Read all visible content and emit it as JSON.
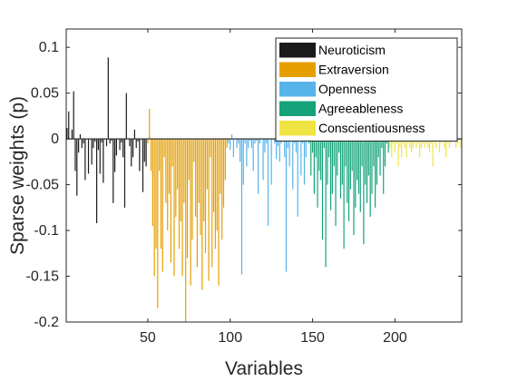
{
  "chart_data": {
    "type": "bar",
    "xlabel": "Variables",
    "ylabel": "Sparse weights (p)",
    "xlim": [
      0.5,
      240.5
    ],
    "ylim": [
      -0.2,
      0.12
    ],
    "x_ticks": [
      {
        "value": 50,
        "label": "50"
      },
      {
        "value": 100,
        "label": "100"
      },
      {
        "value": 150,
        "label": "150"
      },
      {
        "value": 200,
        "label": "200"
      }
    ],
    "y_ticks": [
      {
        "value": 0.1,
        "label": "0.1"
      },
      {
        "value": 0.05,
        "label": "0.05"
      },
      {
        "value": 0,
        "label": "0"
      },
      {
        "value": -0.05,
        "label": "-0.05"
      },
      {
        "value": -0.1,
        "label": "-0.1"
      },
      {
        "value": -0.15,
        "label": "-0.15"
      },
      {
        "value": -0.2,
        "label": "-0.2"
      }
    ],
    "grid": false,
    "legend_position": "top-right",
    "series": [
      {
        "name": "Neuroticism",
        "color": "#1a1a1a",
        "x_start": 1,
        "values": [
          0.012,
          0.03,
          0.0,
          0.01,
          0.052,
          -0.035,
          -0.062,
          -0.015,
          0.005,
          -0.01,
          -0.005,
          -0.045,
          0.0,
          -0.038,
          0.0,
          -0.028,
          -0.01,
          -0.003,
          -0.092,
          -0.012,
          -0.038,
          -0.004,
          -0.048,
          0.0,
          -0.008,
          0.089,
          -0.005,
          -0.002,
          -0.07,
          -0.036,
          -0.018,
          0.0,
          -0.012,
          -0.004,
          -0.02,
          -0.075,
          0.05,
          0.0,
          -0.008,
          -0.03,
          -0.02,
          0.01,
          -0.01,
          -0.003,
          -0.035,
          0.0,
          -0.058,
          -0.025,
          -0.03
        ]
      },
      {
        "name": "Extraversion",
        "color": "#e69f00",
        "x_start": 50,
        "values": [
          -0.005,
          0.033,
          -0.035,
          -0.095,
          -0.15,
          -0.12,
          -0.185,
          -0.035,
          -0.12,
          -0.145,
          -0.02,
          -0.07,
          -0.1,
          -0.06,
          -0.135,
          -0.03,
          -0.15,
          -0.085,
          -0.055,
          -0.12,
          -0.09,
          -0.15,
          -0.07,
          -0.2,
          -0.13,
          -0.045,
          -0.16,
          -0.11,
          -0.025,
          -0.085,
          -0.14,
          -0.07,
          -0.105,
          -0.165,
          -0.09,
          -0.125,
          -0.055,
          -0.155,
          -0.02,
          -0.14,
          -0.08,
          -0.12,
          -0.1,
          -0.16,
          -0.06,
          -0.11,
          -0.075,
          -0.045,
          -0.01
        ]
      },
      {
        "name": "Openness",
        "color": "#56b4e9",
        "x_start": 99,
        "values": [
          -0.005,
          -0.012,
          0.005,
          -0.02,
          0.0,
          -0.01,
          -0.005,
          -0.025,
          -0.148,
          -0.05,
          -0.005,
          -0.03,
          -0.01,
          -0.002,
          -0.01,
          -0.035,
          -0.005,
          -0.002,
          -0.06,
          -0.005,
          0.0,
          -0.045,
          -0.015,
          -0.005,
          -0.095,
          0.0,
          -0.05,
          0.0,
          -0.005,
          -0.022,
          -0.008,
          -0.025,
          -0.005,
          0.0,
          -0.02,
          -0.145,
          -0.01,
          -0.03,
          -0.002,
          -0.055,
          -0.005,
          -0.015,
          -0.085,
          0.0,
          -0.04,
          -0.005,
          -0.05,
          -0.02,
          -0.002
        ]
      },
      {
        "name": "Agreeableness",
        "color": "#16a37a",
        "x_start": 148,
        "values": [
          -0.005,
          -0.04,
          -0.015,
          -0.06,
          -0.02,
          -0.075,
          -0.035,
          -0.045,
          -0.11,
          -0.01,
          -0.14,
          -0.05,
          -0.02,
          -0.078,
          -0.06,
          -0.03,
          -0.095,
          -0.04,
          -0.015,
          -0.065,
          -0.05,
          -0.12,
          -0.03,
          -0.07,
          -0.09,
          -0.055,
          -0.035,
          -0.105,
          -0.075,
          -0.045,
          -0.06,
          -0.08,
          -0.03,
          -0.115,
          -0.05,
          -0.07,
          -0.04,
          -0.085,
          -0.06,
          -0.03,
          -0.075,
          -0.05,
          -0.02,
          -0.04,
          -0.01,
          -0.06,
          -0.03,
          -0.005,
          -0.015
        ]
      },
      {
        "name": "Conscientiousness",
        "color": "#f0e442",
        "x_start": 197,
        "values": [
          -0.01,
          -0.02,
          -0.005,
          -0.015,
          -0.005,
          -0.03,
          -0.01,
          -0.02,
          -0.005,
          -0.01,
          -0.02,
          -0.005,
          -0.01,
          -0.015,
          -0.01,
          -0.005,
          -0.01,
          -0.005,
          -0.02,
          -0.01,
          -0.005,
          -0.01,
          -0.005,
          -0.01,
          -0.015,
          -0.005,
          -0.03,
          -0.005,
          -0.01,
          0.0,
          -0.015,
          -0.005,
          0.0,
          -0.01,
          -0.02,
          -0.005,
          -0.01,
          -0.005,
          0.0,
          0.0,
          -0.01,
          -0.005,
          0.0,
          -0.01
        ]
      }
    ]
  }
}
